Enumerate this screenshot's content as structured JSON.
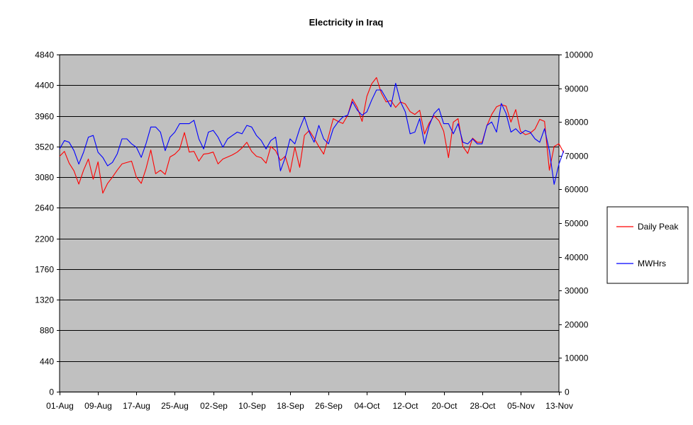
{
  "chart_data": {
    "type": "line",
    "title": "Electricity in Iraq",
    "xlabel": "",
    "ylabel": "",
    "grid": true,
    "legend_position": "right",
    "plot_background": "#c0c0c0",
    "x_tick_labels": [
      "01-Aug",
      "09-Aug",
      "17-Aug",
      "25-Aug",
      "02-Sep",
      "10-Sep",
      "18-Sep",
      "26-Sep",
      "04-Oct",
      "12-Oct",
      "20-Oct",
      "28-Oct",
      "05-Nov",
      "13-Nov"
    ],
    "x_range": [
      0,
      104
    ],
    "y_left": {
      "range": [
        0,
        4840
      ],
      "ticks": [
        0,
        440,
        880,
        1320,
        1760,
        2200,
        2640,
        3080,
        3520,
        3960,
        4400,
        4840
      ]
    },
    "y_right": {
      "range": [
        0,
        100000
      ],
      "ticks": [
        0,
        10000,
        20000,
        30000,
        40000,
        50000,
        60000,
        70000,
        80000,
        90000,
        100000
      ]
    },
    "series": [
      {
        "name": "Daily Peak",
        "axis": "left",
        "color": "#ff0000",
        "x_start": 0,
        "values": [
          3380,
          3450,
          3280,
          3170,
          2980,
          3180,
          3340,
          3050,
          3300,
          2850,
          2990,
          3080,
          3180,
          3270,
          3290,
          3310,
          3080,
          2990,
          3200,
          3470,
          3130,
          3180,
          3120,
          3370,
          3410,
          3480,
          3720,
          3440,
          3450,
          3310,
          3410,
          3420,
          3440,
          3270,
          3340,
          3370,
          3400,
          3440,
          3500,
          3580,
          3450,
          3380,
          3360,
          3280,
          3520,
          3460,
          3320,
          3380,
          3150,
          3510,
          3220,
          3680,
          3750,
          3640,
          3520,
          3410,
          3660,
          3920,
          3880,
          3850,
          3970,
          4200,
          4080,
          3880,
          4240,
          4420,
          4510,
          4290,
          4160,
          4180,
          4080,
          4160,
          4130,
          4020,
          3980,
          4040,
          3700,
          3860,
          3960,
          3890,
          3740,
          3360,
          3870,
          3920,
          3520,
          3420,
          3640,
          3580,
          3580,
          3820,
          3980,
          4090,
          4120,
          4100,
          3870,
          4050,
          3740,
          3690,
          3710,
          3770,
          3910,
          3880,
          3180,
          3520,
          3560,
          3430
        ]
      },
      {
        "name": "MWHrs",
        "axis": "right",
        "color": "#0000ff",
        "x_start": 0,
        "values": [
          72000,
          74500,
          74000,
          71500,
          67500,
          71000,
          75500,
          76000,
          71000,
          69500,
          67000,
          68000,
          70500,
          75000,
          75000,
          73500,
          72500,
          69500,
          73500,
          78500,
          78500,
          77000,
          71500,
          75500,
          77000,
          79500,
          79500,
          79500,
          80500,
          75000,
          72000,
          77000,
          77500,
          75500,
          72500,
          75000,
          76000,
          77000,
          76500,
          79000,
          78500,
          76000,
          74500,
          72000,
          74500,
          75500,
          65500,
          69500,
          75000,
          73500,
          78000,
          81500,
          77000,
          74000,
          79000,
          75000,
          73500,
          78000,
          80000,
          81500,
          82000,
          86000,
          83500,
          82000,
          83000,
          86500,
          89500,
          89500,
          87000,
          84500,
          91500,
          86000,
          83000,
          76500,
          77000,
          81000,
          73500,
          79000,
          82500,
          84000,
          79500,
          79500,
          76500,
          79500,
          74000,
          73500,
          75000,
          73500,
          73500,
          79000,
          80000,
          77000,
          85500,
          82500,
          77000,
          78000,
          76500,
          77500,
          77000,
          75000,
          74000,
          78000,
          71500,
          61500,
          67500,
          71500
        ]
      }
    ]
  }
}
